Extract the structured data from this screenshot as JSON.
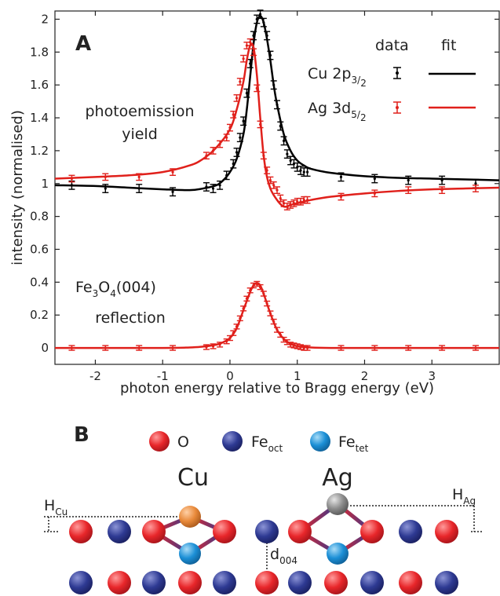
{
  "chart_data": {
    "type": "line",
    "panel_label": "A",
    "xlabel": "photon energy relative to Bragg energy (eV)",
    "ylabel": "intensity (normalised)",
    "xlim": [
      -2.6,
      4.0
    ],
    "ylim": [
      -0.1,
      2.05
    ],
    "xticks": [
      -2,
      -1,
      0,
      1,
      2,
      3
    ],
    "yticks": [
      0,
      0.2,
      0.4,
      0.6,
      0.8,
      1,
      1.2,
      1.4,
      1.6,
      1.8,
      2
    ],
    "annotations": {
      "yield_line1": "photoemission",
      "yield_line2": "yield",
      "refl_main": "Fe",
      "refl_sub1": "3",
      "refl_mid": "O",
      "refl_sub2": "4",
      "refl_tail": "(004)",
      "refl_line2": "reflection"
    },
    "legend": {
      "header_data": "data",
      "header_fit": "fit",
      "entries": [
        {
          "main": "Cu 2p",
          "sub": "3",
          "subsub": "2",
          "color": "#000000"
        },
        {
          "main": "Ag 3d",
          "sub": "5",
          "subsub": "2",
          "color": "#e0201b"
        }
      ]
    },
    "series": [
      {
        "name": "Cu 2p3/2",
        "color": "#000000",
        "data_x": [
          -2.35,
          -1.85,
          -1.35,
          -0.85,
          -0.35,
          -0.25,
          -0.15,
          -0.05,
          0.05,
          0.1,
          0.15,
          0.2,
          0.25,
          0.3,
          0.35,
          0.4,
          0.45,
          0.5,
          0.55,
          0.6,
          0.65,
          0.7,
          0.75,
          0.8,
          0.85,
          0.9,
          0.95,
          1.0,
          1.05,
          1.1,
          1.15,
          1.65,
          2.15,
          2.65,
          3.15,
          3.65
        ],
        "data_y": [
          0.99,
          0.97,
          0.97,
          0.95,
          0.98,
          0.97,
          0.99,
          1.05,
          1.12,
          1.19,
          1.28,
          1.38,
          1.55,
          1.73,
          1.9,
          2.0,
          2.03,
          1.98,
          1.9,
          1.78,
          1.6,
          1.48,
          1.35,
          1.26,
          1.18,
          1.14,
          1.12,
          1.1,
          1.08,
          1.07,
          1.07,
          1.04,
          1.03,
          1.02,
          1.02,
          1.0
        ],
        "err": 0.025,
        "fit_x": [
          -2.6,
          -2.0,
          -1.5,
          -1.0,
          -0.6,
          -0.4,
          -0.2,
          -0.1,
          0.0,
          0.1,
          0.2,
          0.25,
          0.3,
          0.35,
          0.4,
          0.45,
          0.5,
          0.55,
          0.6,
          0.65,
          0.7,
          0.8,
          0.9,
          1.0,
          1.1,
          1.2,
          1.5,
          2.0,
          2.5,
          3.0,
          3.5,
          4.0
        ],
        "fit_y": [
          0.99,
          0.985,
          0.975,
          0.965,
          0.96,
          0.97,
          0.99,
          1.02,
          1.07,
          1.15,
          1.3,
          1.45,
          1.65,
          1.85,
          1.98,
          2.02,
          1.98,
          1.88,
          1.75,
          1.6,
          1.48,
          1.3,
          1.2,
          1.14,
          1.11,
          1.09,
          1.065,
          1.045,
          1.035,
          1.03,
          1.025,
          1.02
        ]
      },
      {
        "name": "Ag 3d5/2",
        "color": "#e0201b",
        "data_x": [
          -2.35,
          -1.85,
          -1.35,
          -0.85,
          -0.35,
          -0.25,
          -0.15,
          -0.05,
          0.0,
          0.05,
          0.1,
          0.15,
          0.2,
          0.25,
          0.3,
          0.35,
          0.4,
          0.45,
          0.5,
          0.55,
          0.6,
          0.65,
          0.7,
          0.75,
          0.8,
          0.85,
          0.9,
          0.95,
          1.0,
          1.05,
          1.1,
          1.15,
          1.65,
          2.15,
          2.65,
          3.15,
          3.65
        ],
        "data_y": [
          1.03,
          1.04,
          1.04,
          1.07,
          1.17,
          1.2,
          1.24,
          1.28,
          1.34,
          1.42,
          1.52,
          1.62,
          1.76,
          1.84,
          1.86,
          1.8,
          1.58,
          1.36,
          1.17,
          1.08,
          1.02,
          0.99,
          0.96,
          0.91,
          0.88,
          0.86,
          0.87,
          0.88,
          0.89,
          0.89,
          0.9,
          0.9,
          0.92,
          0.94,
          0.96,
          0.96,
          0.97
        ],
        "err": 0.02,
        "fit_x": [
          -2.6,
          -2.0,
          -1.5,
          -1.0,
          -0.6,
          -0.4,
          -0.2,
          0.0,
          0.1,
          0.2,
          0.25,
          0.3,
          0.35,
          0.4,
          0.45,
          0.5,
          0.55,
          0.6,
          0.65,
          0.7,
          0.75,
          0.8,
          0.85,
          0.9,
          1.0,
          1.1,
          1.2,
          1.5,
          2.0,
          2.5,
          3.0,
          3.5,
          4.0
        ],
        "fit_y": [
          1.03,
          1.04,
          1.05,
          1.07,
          1.11,
          1.15,
          1.22,
          1.33,
          1.45,
          1.62,
          1.75,
          1.84,
          1.83,
          1.66,
          1.4,
          1.17,
          1.04,
          0.97,
          0.93,
          0.9,
          0.875,
          0.86,
          0.86,
          0.87,
          0.88,
          0.89,
          0.9,
          0.92,
          0.94,
          0.955,
          0.965,
          0.97,
          0.975
        ]
      },
      {
        "name": "Fe3O4(004) reflection",
        "color": "#e0201b",
        "data_x": [
          -2.35,
          -1.85,
          -1.35,
          -0.85,
          -0.35,
          -0.25,
          -0.15,
          -0.05,
          0.0,
          0.05,
          0.1,
          0.15,
          0.2,
          0.25,
          0.3,
          0.35,
          0.4,
          0.45,
          0.5,
          0.55,
          0.6,
          0.65,
          0.7,
          0.75,
          0.8,
          0.85,
          0.9,
          0.95,
          1.0,
          1.05,
          1.1,
          1.15,
          1.65,
          2.15,
          2.65,
          3.15,
          3.65
        ],
        "data_y": [
          0.0,
          0.0,
          0.0,
          0.0,
          0.005,
          0.01,
          0.02,
          0.04,
          0.06,
          0.09,
          0.13,
          0.18,
          0.24,
          0.3,
          0.35,
          0.38,
          0.39,
          0.37,
          0.33,
          0.27,
          0.21,
          0.16,
          0.11,
          0.08,
          0.05,
          0.035,
          0.02,
          0.015,
          0.01,
          0.005,
          0.0,
          0.0,
          0.0,
          0.0,
          0.0,
          0.0,
          0.0
        ],
        "err": 0.01,
        "fit_x": [
          -2.6,
          -1.0,
          -0.6,
          -0.4,
          -0.2,
          -0.1,
          0.0,
          0.1,
          0.2,
          0.3,
          0.35,
          0.4,
          0.45,
          0.5,
          0.6,
          0.7,
          0.8,
          0.9,
          1.0,
          1.2,
          1.5,
          2.0,
          4.0
        ],
        "fit_y": [
          0.0,
          0.0,
          0.003,
          0.008,
          0.02,
          0.035,
          0.06,
          0.12,
          0.23,
          0.34,
          0.38,
          0.395,
          0.38,
          0.33,
          0.21,
          0.11,
          0.055,
          0.025,
          0.01,
          0.003,
          0.0,
          0.0,
          0.0
        ]
      }
    ]
  },
  "schematic": {
    "panel_label": "B",
    "legend": [
      {
        "label": "O",
        "sub": "",
        "color": "#e8262a"
      },
      {
        "label": "Fe",
        "sub": "oct",
        "color": "#2e3a93"
      },
      {
        "label": "Fe",
        "sub": "tet",
        "color": "#1b8fd6"
      }
    ],
    "site_cu": "Cu",
    "site_ag": "Ag",
    "h_cu_main": "H",
    "h_cu_sub": "Cu",
    "h_ag_main": "H",
    "h_ag_sub": "Ag",
    "d_main": "d",
    "d_sub": "004",
    "adsorbate_colors": {
      "Cu": "#e8893a",
      "Ag": "#8c8c8c"
    }
  }
}
